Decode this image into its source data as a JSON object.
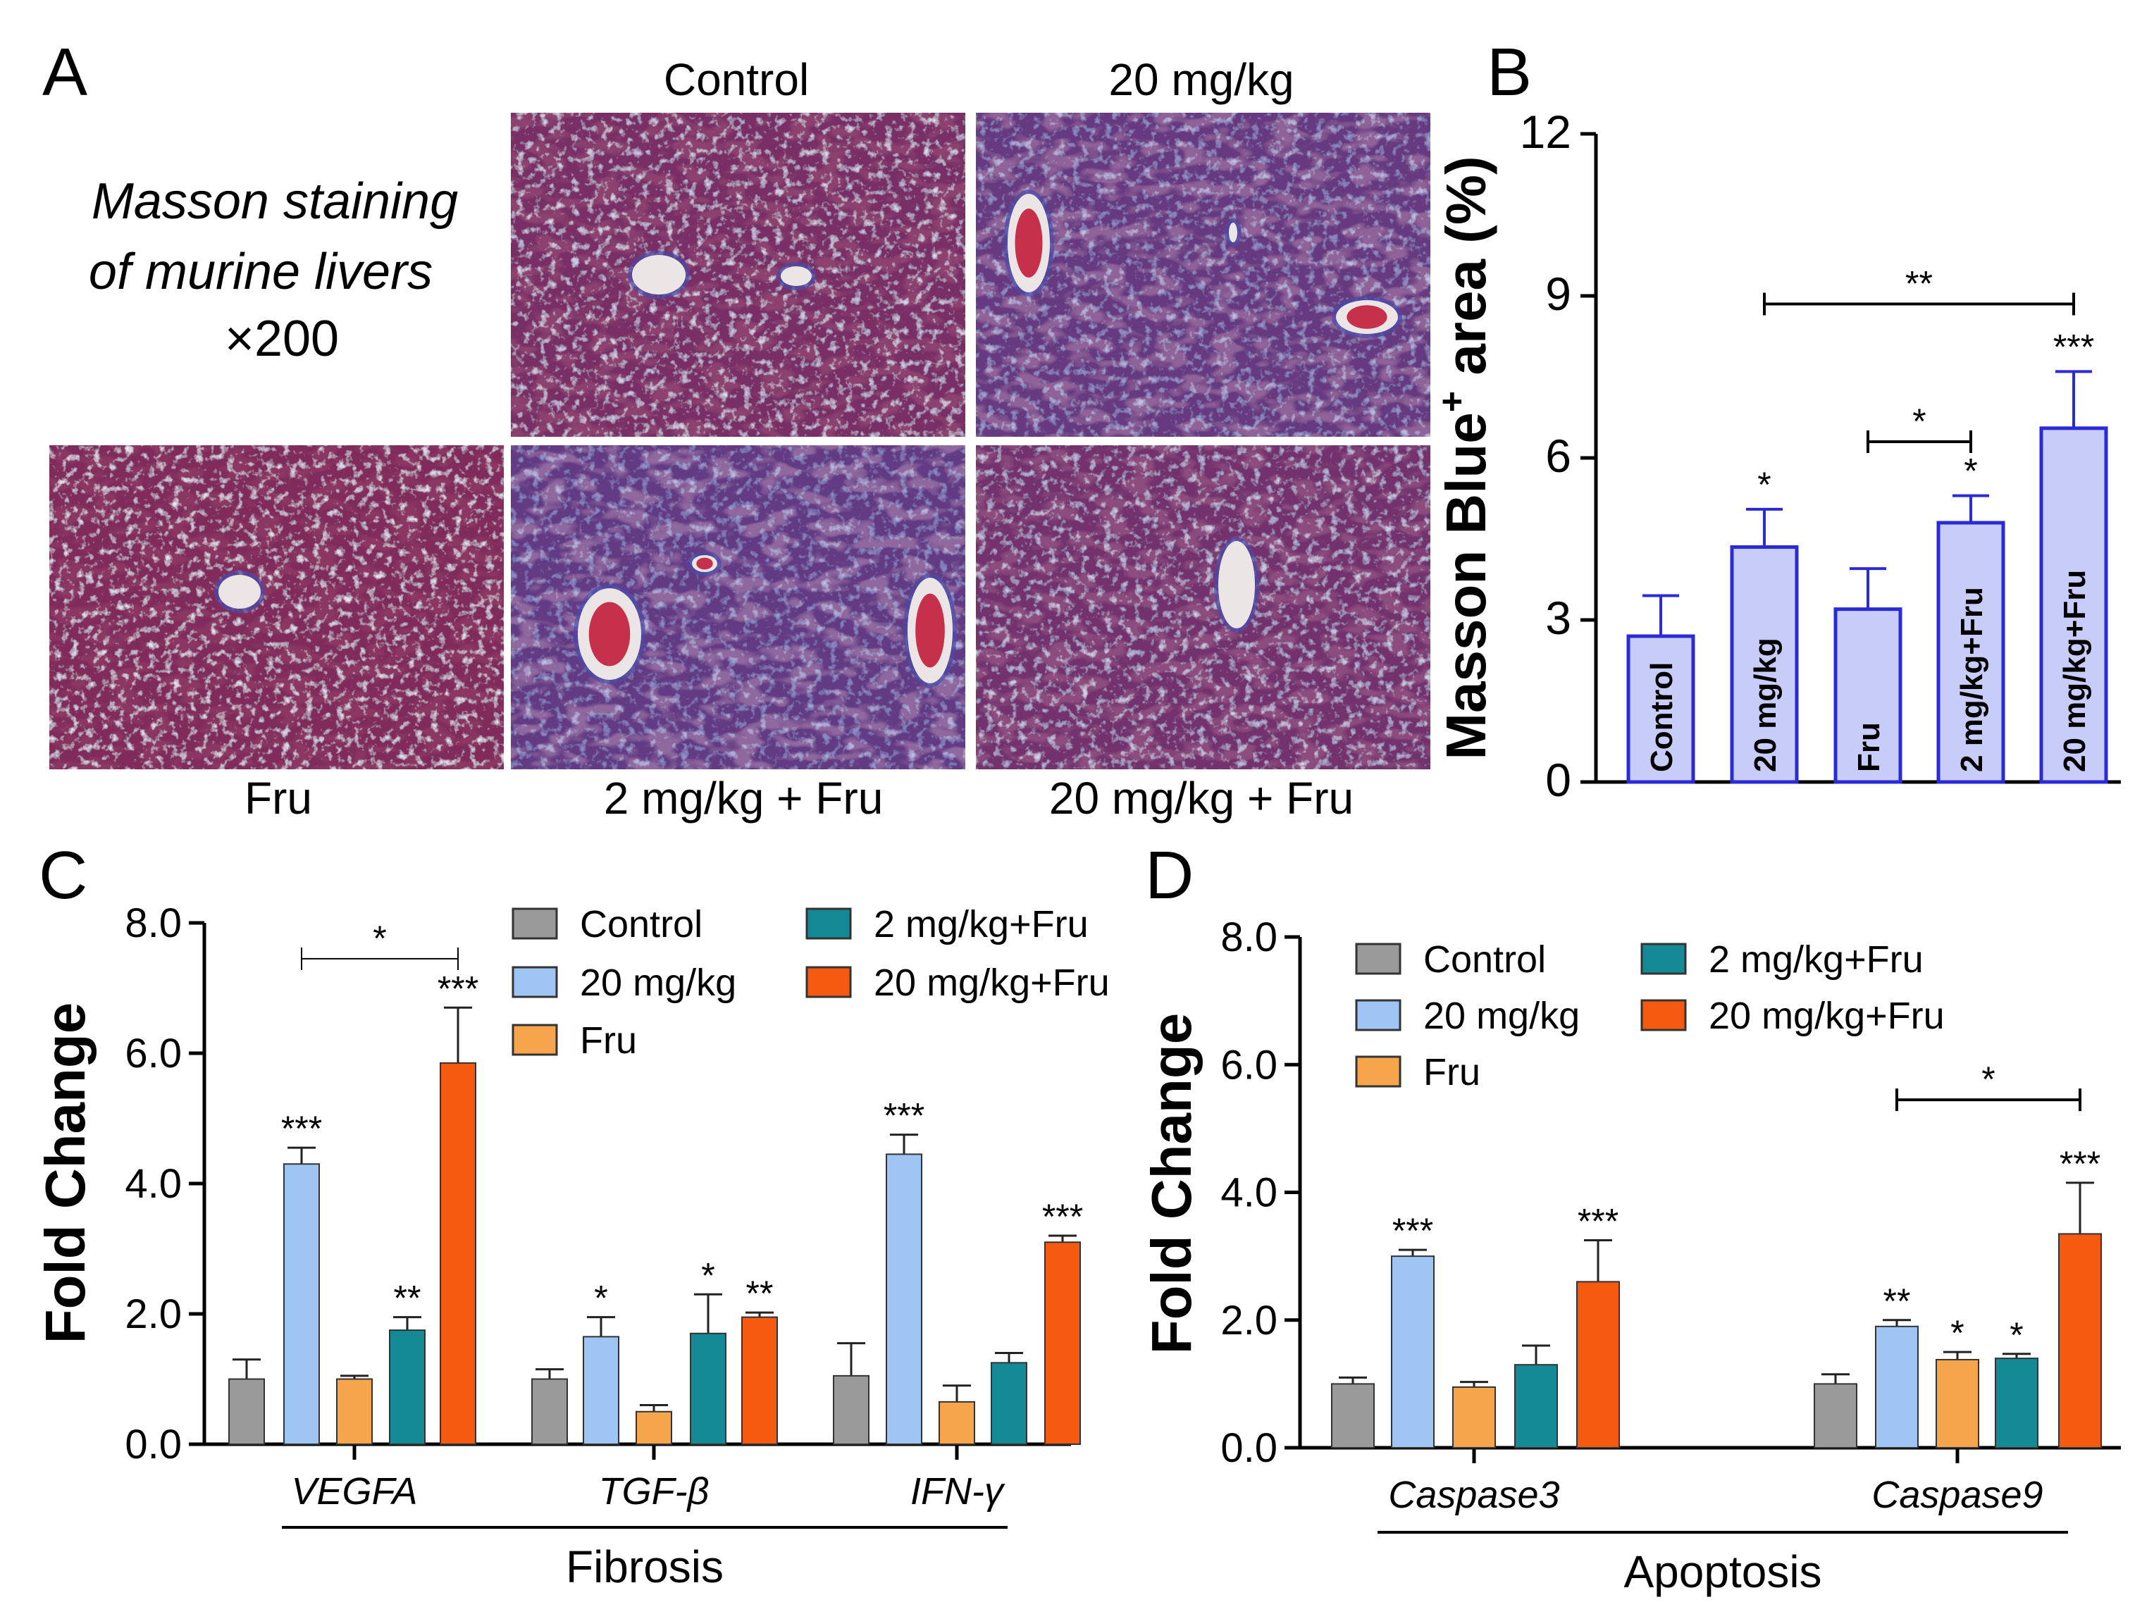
{
  "panel_a": {
    "letter": "A",
    "caption_line1": "Masson staining",
    "caption_line2": "of murine livers",
    "magnification": "×200",
    "top_labels": [
      "Control",
      "20 mg/kg"
    ],
    "bottom_labels": [
      "Fru",
      "2 mg/kg + Fru",
      "20 mg/kg + Fru"
    ],
    "colors": {
      "tissue": "#8a2550",
      "vessel": "#ebe5e5",
      "blood": "#c01030",
      "fiber": "#4a4aa8"
    }
  },
  "colors": {
    "control": "#9a9a9a",
    "mg20": "#9fc5f5",
    "fru": "#f7a54a",
    "mg2fru": "#138a96",
    "mg20fru": "#f55a10",
    "panelB_fill": "#c8ccf8",
    "panelB_edge": "#2a2ad8"
  },
  "chart_data": [
    {
      "panel": "B",
      "type": "bar",
      "ylabel_main": "Masson Blue",
      "ylabel_sup": "+",
      "ylabel_tail": " area (%)",
      "ylim": [
        0,
        12
      ],
      "yticks": [
        0,
        3,
        6,
        9,
        12
      ],
      "ytick_labels": [
        "0",
        "3",
        "6",
        "9",
        "12"
      ],
      "categories": [
        "Control",
        "20 mg/kg",
        "Fru",
        "2 mg/kg+Fru",
        "20 mg/kg+Fru"
      ],
      "values": [
        2.7,
        4.35,
        3.2,
        4.8,
        6.55
      ],
      "errors": [
        0.75,
        0.7,
        0.75,
        0.5,
        1.05
      ],
      "stars": [
        "",
        "*",
        "",
        "*",
        "***"
      ],
      "brackets": [
        {
          "from": 1,
          "to": 4,
          "label": "**",
          "y": 8.85
        },
        {
          "from": 2,
          "to": 3,
          "label": "*",
          "y": 6.3
        }
      ]
    },
    {
      "panel": "C",
      "type": "bar",
      "ylabel": "Fold Change",
      "ylim": [
        0,
        8
      ],
      "yticks": [
        0,
        2,
        4,
        6,
        8
      ],
      "ytick_labels": [
        "0.0",
        "2.0",
        "4.0",
        "6.0",
        "8.0"
      ],
      "groups": [
        "VEGFA",
        "TGF-β",
        "IFN-γ"
      ],
      "group_title": "Fibrosis",
      "series": [
        {
          "name": "Control",
          "values": [
            1.0,
            1.0,
            1.05
          ],
          "errors": [
            0.3,
            0.15,
            0.5
          ],
          "stars": [
            "",
            "",
            ""
          ]
        },
        {
          "name": "20 mg/kg",
          "values": [
            4.3,
            1.65,
            4.45
          ],
          "errors": [
            0.25,
            0.3,
            0.3
          ],
          "stars": [
            "***",
            "*",
            "***"
          ]
        },
        {
          "name": "Fru",
          "values": [
            1.0,
            0.5,
            0.65
          ],
          "errors": [
            0.05,
            0.1,
            0.25
          ],
          "stars": [
            "",
            "",
            ""
          ]
        },
        {
          "name": "2 mg/kg+Fru",
          "values": [
            1.75,
            1.7,
            1.25
          ],
          "errors": [
            0.2,
            0.6,
            0.15
          ],
          "stars": [
            "**",
            "*",
            ""
          ]
        },
        {
          "name": "20 mg/kg+Fru",
          "values": [
            5.85,
            1.95,
            3.1
          ],
          "errors": [
            0.85,
            0.07,
            0.1
          ],
          "stars": [
            "***",
            "**",
            "***"
          ]
        }
      ],
      "brackets": [
        {
          "group": 0,
          "from": 1,
          "to": 4,
          "label": "*",
          "y": 7.45
        }
      ]
    },
    {
      "panel": "D",
      "type": "bar",
      "ylabel": "Fold Change",
      "ylim": [
        0,
        8
      ],
      "yticks": [
        0,
        2,
        4,
        6,
        8
      ],
      "ytick_labels": [
        "0.0",
        "2.0",
        "4.0",
        "6.0",
        "8.0"
      ],
      "groups": [
        "Caspase3",
        "Caspase9"
      ],
      "group_title": "Apoptosis",
      "series": [
        {
          "name": "Control",
          "values": [
            1.0,
            1.0
          ],
          "errors": [
            0.1,
            0.15
          ],
          "stars": [
            "",
            ""
          ]
        },
        {
          "name": "20 mg/kg",
          "values": [
            3.0,
            1.9
          ],
          "errors": [
            0.1,
            0.1
          ],
          "stars": [
            "***",
            "**"
          ]
        },
        {
          "name": "Fru",
          "values": [
            0.95,
            1.38
          ],
          "errors": [
            0.08,
            0.12
          ],
          "stars": [
            "",
            "*"
          ]
        },
        {
          "name": "2 mg/kg+Fru",
          "values": [
            1.3,
            1.4
          ],
          "errors": [
            0.3,
            0.07
          ],
          "stars": [
            "",
            "*"
          ]
        },
        {
          "name": "20 mg/kg+Fru",
          "values": [
            2.6,
            3.35
          ],
          "errors": [
            0.65,
            0.8
          ],
          "stars": [
            "***",
            "***"
          ]
        }
      ],
      "brackets": [
        {
          "group": 1,
          "from": 1,
          "to": 4,
          "label": "*",
          "y": 5.45
        }
      ]
    }
  ]
}
